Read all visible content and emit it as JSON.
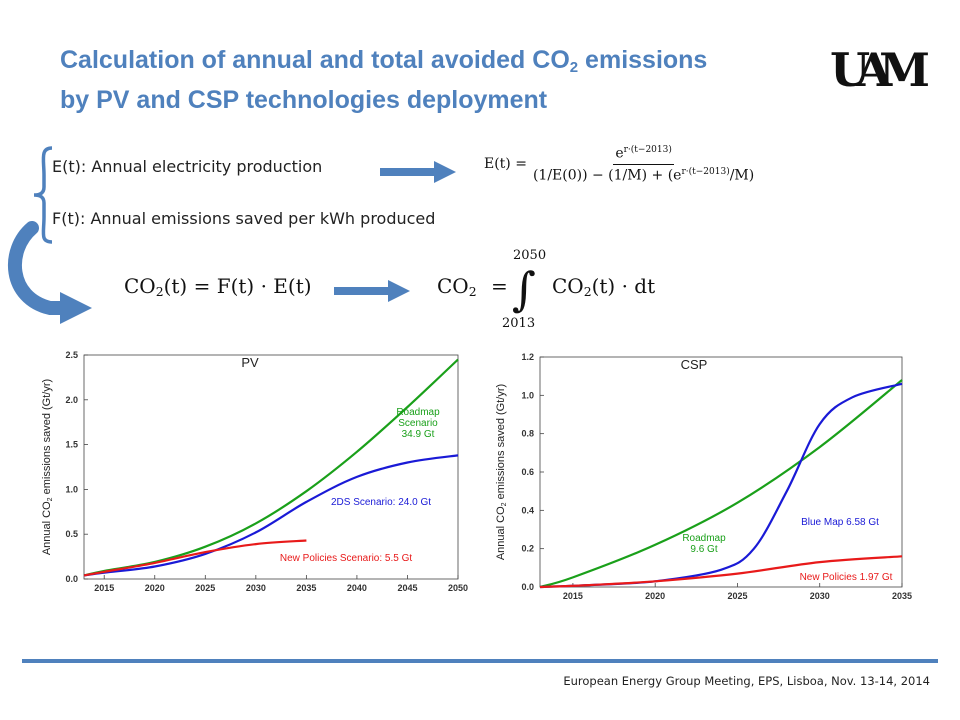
{
  "slide": {
    "title_line1_pre": "Calculation of annual and total avoided CO",
    "title_line1_sub": "2",
    "title_line1_post": " emissions",
    "title_line2": "by PV and CSP technologies deployment",
    "logo_text": "UAM",
    "footer": "European Energy Group Meeting, EPS, Lisboa, Nov. 13-14, 2014"
  },
  "definitions": {
    "e_def": "E(t): Annual electricity production",
    "f_def": "F(t): Annual emissions saved per kWh produced"
  },
  "formulas": {
    "et_lhs": "E(t) =",
    "et_num": "e",
    "et_num_exp": "r·(t−2013)",
    "et_den_a": "(1/E(0)) − (1/M) + (e",
    "et_den_exp": "r·(t−2013)",
    "et_den_b": "/M)",
    "co2_a": "CO",
    "co2_sub": "2",
    "co2_b": "(t) = F(t) · E(t)",
    "total_a": "CO",
    "total_sub": "2",
    "total_eq": "=",
    "int_upper": "2050",
    "int_lower": "2013",
    "int_sign": "∫",
    "total_b_a": "CO",
    "total_b_sub": "2",
    "total_b_b": "(t) · dt"
  },
  "colors": {
    "accent": "#4f81bd",
    "green": "#1aa01a",
    "blue": "#1a1ad6",
    "red": "#e81a1a"
  },
  "chart_data": [
    {
      "type": "line",
      "title": "PV",
      "ylabel_pre": "Annual CO",
      "ylabel_sub": "2",
      "ylabel_post": " emissions saved (Gt/yr)",
      "xlim": [
        2013,
        2050
      ],
      "ylim": [
        0,
        2.5
      ],
      "xticks": [
        2015,
        2020,
        2025,
        2030,
        2035,
        2040,
        2045,
        2050
      ],
      "yticks": [
        "0.0",
        "0.5",
        "1.0",
        "1.5",
        "2.0",
        "2.5"
      ],
      "series": [
        {
          "color": "green",
          "label_lines": [
            "Roadmap",
            "Scenario",
            "34.9 Gt"
          ],
          "x": [
            2013,
            2015,
            2020,
            2025,
            2030,
            2035,
            2040,
            2045,
            2050
          ],
          "y": [
            0.04,
            0.09,
            0.19,
            0.36,
            0.62,
            0.98,
            1.42,
            1.92,
            2.45
          ]
        },
        {
          "color": "blue",
          "label_lines": [
            "2DS Scenario: 24.0 Gt"
          ],
          "x": [
            2013,
            2015,
            2020,
            2025,
            2030,
            2035,
            2040,
            2045,
            2050
          ],
          "y": [
            0.04,
            0.07,
            0.14,
            0.28,
            0.52,
            0.86,
            1.14,
            1.3,
            1.38
          ]
        },
        {
          "color": "red",
          "label_lines": [
            "New Policies Scenario: 5.5 Gt"
          ],
          "x": [
            2013,
            2015,
            2020,
            2025,
            2030,
            2035
          ],
          "y": [
            0.04,
            0.08,
            0.18,
            0.3,
            0.39,
            0.43
          ]
        }
      ]
    },
    {
      "type": "line",
      "title": "CSP",
      "ylabel_pre": "Annual CO",
      "ylabel_sub": "2",
      "ylabel_post": " emissions saved (Gt/yr)",
      "xlim": [
        2013,
        2035
      ],
      "ylim": [
        0,
        1.2
      ],
      "xticks": [
        2015,
        2020,
        2025,
        2030,
        2035
      ],
      "yticks": [
        "0.0",
        "0.2",
        "0.4",
        "0.6",
        "0.8",
        "1.0",
        "1.2"
      ],
      "series": [
        {
          "color": "green",
          "label_lines": [
            "Roadmap",
            "9.6 Gt"
          ],
          "x": [
            2013,
            2015,
            2020,
            2025,
            2030,
            2035
          ],
          "y": [
            0.0,
            0.05,
            0.22,
            0.44,
            0.73,
            1.08
          ]
        },
        {
          "color": "blue",
          "label_lines": [
            "Blue Map 6.58 Gt"
          ],
          "x": [
            2013,
            2016,
            2020,
            2024,
            2026,
            2028,
            2030,
            2032,
            2035
          ],
          "y": [
            0.0,
            0.01,
            0.03,
            0.09,
            0.2,
            0.5,
            0.85,
            0.99,
            1.06
          ]
        },
        {
          "color": "red",
          "label_lines": [
            "New Policies 1.97 Gt"
          ],
          "x": [
            2013,
            2016,
            2020,
            2025,
            2030,
            2035
          ],
          "y": [
            0.0,
            0.01,
            0.03,
            0.07,
            0.13,
            0.16
          ]
        }
      ]
    }
  ]
}
